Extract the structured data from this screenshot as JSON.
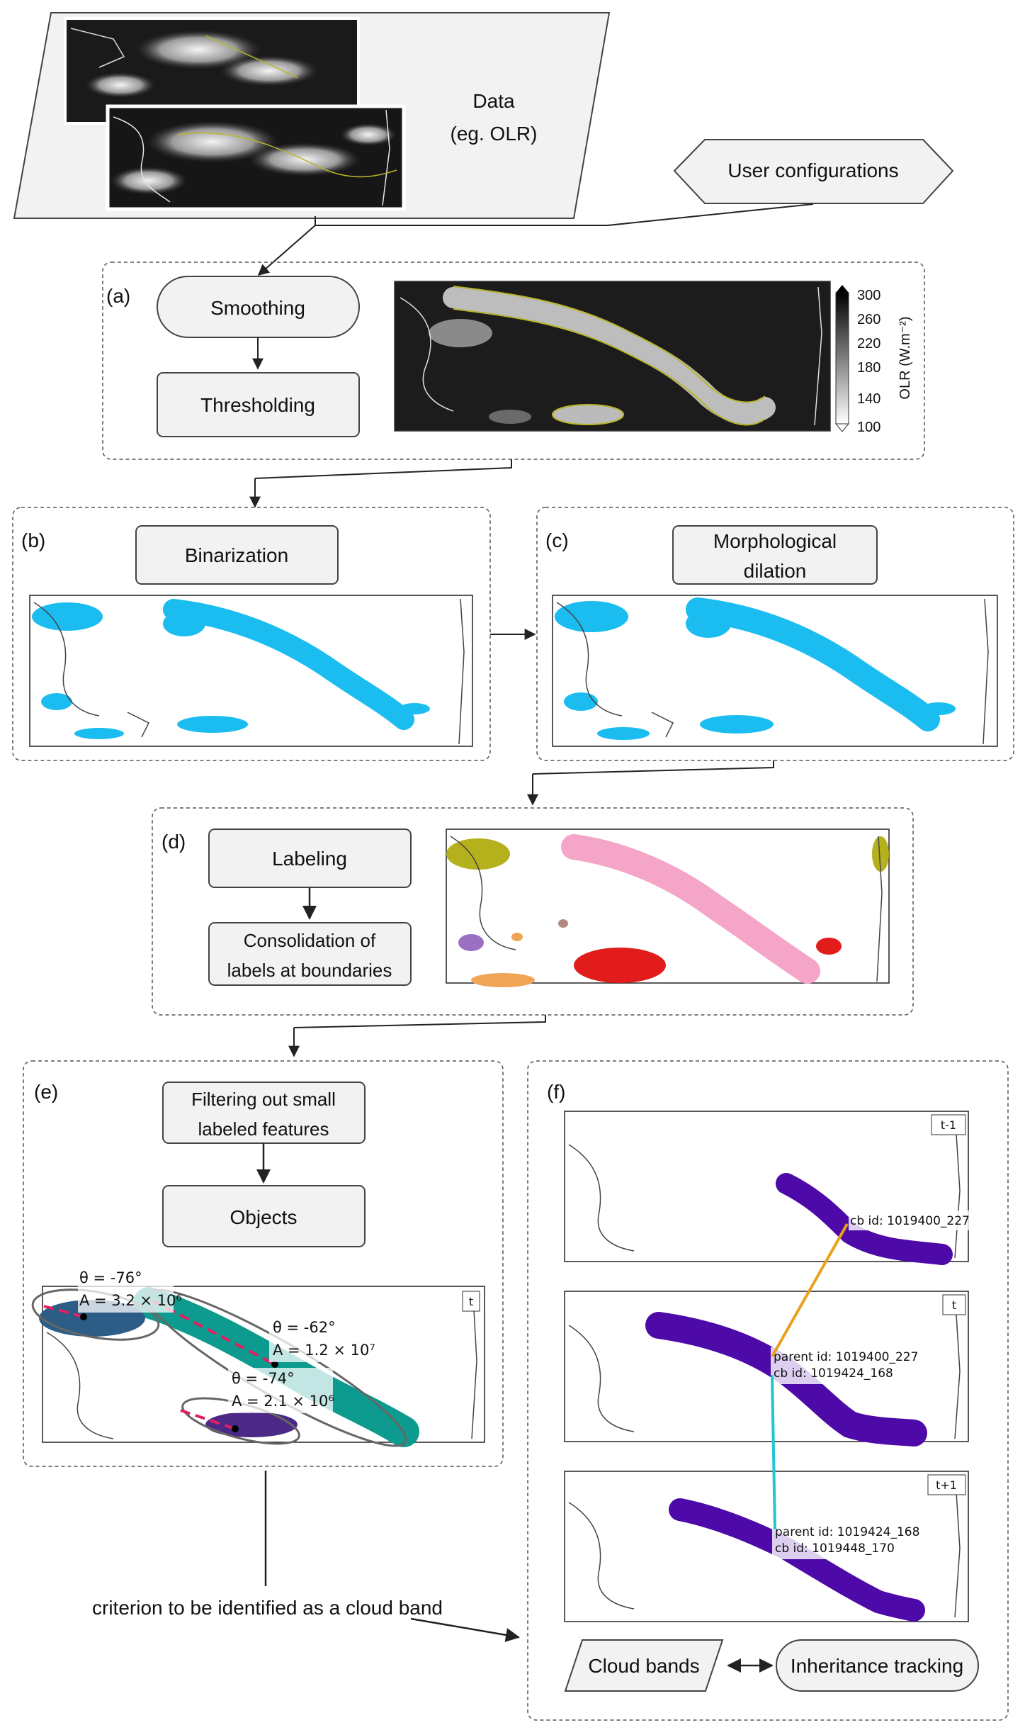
{
  "data_box": {
    "line1": "Data",
    "line2": "(eg. OLR)"
  },
  "user_config": "User configurations",
  "panel_a": {
    "tag": "(a)",
    "smoothing": "Smoothing",
    "thresholding": "Thresholding",
    "colorbar": {
      "label": "OLR (W.m⁻²)",
      "ticks": [
        "300",
        "260",
        "220",
        "180",
        "140",
        "100"
      ]
    }
  },
  "panel_b": {
    "tag": "(b)",
    "title": "Binarization"
  },
  "panel_c": {
    "tag": "(c)",
    "line1": "Morphological",
    "line2": "dilation"
  },
  "panel_d": {
    "tag": "(d)",
    "labeling": "Labeling",
    "consolidation_line1": "Consolidation of",
    "consolidation_line2": "labels at boundaries"
  },
  "panel_e": {
    "tag": "(e)",
    "filter_line1": "Filtering out small",
    "filter_line2": "labeled features",
    "objects": "Objects",
    "time_tag": "t",
    "annotations": [
      {
        "theta": "θ = -76°",
        "area": "A = 3.2 × 10⁶"
      },
      {
        "theta": "θ = -62°",
        "area": "A = 1.2 × 10⁷"
      },
      {
        "theta": "θ = -74°",
        "area": "A = 2.1 × 10⁶"
      }
    ]
  },
  "panel_f": {
    "tag": "(f)",
    "maps": [
      {
        "time_tag": "t-1",
        "line1": "cb id: 1019400_227",
        "line2": ""
      },
      {
        "time_tag": "t",
        "line1": "parent id: 1019400_227",
        "line2": "cb id: 1019424_168"
      },
      {
        "time_tag": "t+1",
        "line1": "parent id: 1019424_168",
        "line2": "cb id: 1019448_170"
      }
    ],
    "cloud_bands": "Cloud bands",
    "inheritance": "Inheritance tracking"
  },
  "criterion": "criterion to be identified as a cloud band",
  "colors": {
    "box_fill": "#f2f2f2",
    "binary": "#1bbdf0",
    "object_teal": "#0d9b8f",
    "object_blue": "#2b5d86",
    "object_purple": "#4a2a86",
    "cloud_band": "#4d0aa8",
    "link_orange": "#e8a21a",
    "link_cyan": "#22c6d2",
    "contour": "#b8b42a"
  }
}
